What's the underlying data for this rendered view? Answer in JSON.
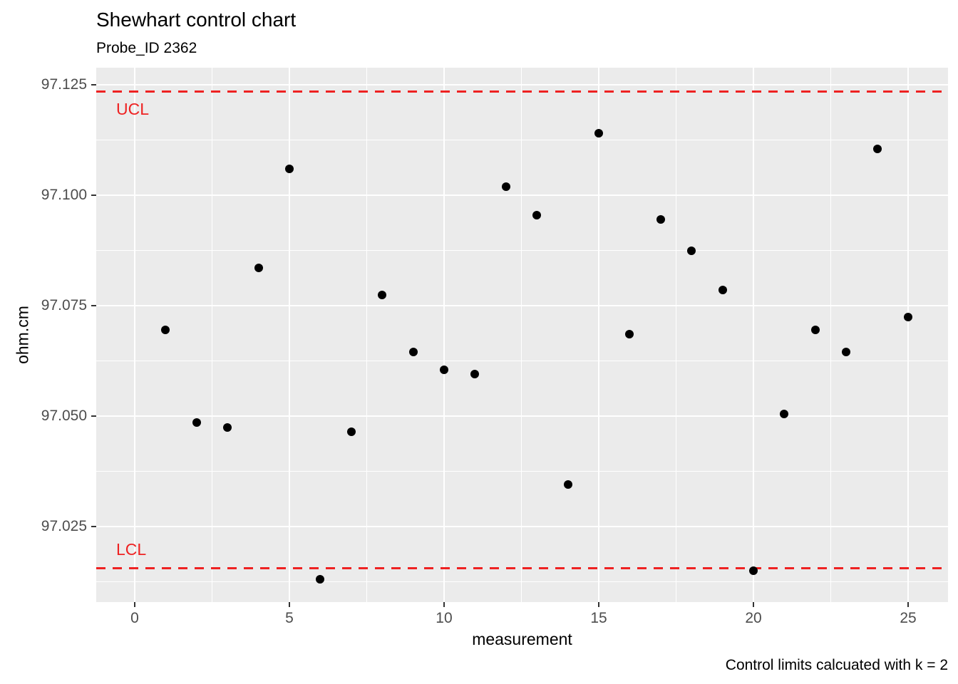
{
  "header": {
    "title": "Shewhart control chart",
    "subtitle": "Probe_ID 2362"
  },
  "footer": {
    "caption": "Control limits calcuated with k = 2"
  },
  "chart_data": {
    "type": "scatter",
    "title": "Shewhart control chart",
    "subtitle": "Probe_ID 2362",
    "xlabel": "measurement",
    "ylabel": "ohm.cm",
    "caption": "Control limits calcuated with k = 2",
    "x": [
      1,
      2,
      3,
      4,
      5,
      6,
      7,
      8,
      9,
      10,
      11,
      12,
      13,
      14,
      15,
      16,
      17,
      18,
      19,
      20,
      21,
      22,
      23,
      24,
      25
    ],
    "y": [
      97.0695,
      97.0485,
      97.0475,
      97.0835,
      97.106,
      97.013,
      97.0465,
      97.0775,
      97.0645,
      97.0605,
      97.0595,
      97.102,
      97.0955,
      97.0345,
      97.114,
      97.0685,
      97.0945,
      97.0875,
      97.0785,
      97.015,
      97.0505,
      97.0695,
      97.0645,
      97.1105,
      97.0725
    ],
    "control_limits": {
      "ucl": {
        "label": "UCL",
        "value": 97.1235
      },
      "lcl": {
        "label": "LCL",
        "value": 97.0155
      },
      "k_note": "k = 2",
      "line_style": "dashed"
    },
    "x_ticks": [
      0,
      5,
      10,
      15,
      20,
      25
    ],
    "x_tick_labels": [
      "0",
      "5",
      "10",
      "15",
      "20",
      "25"
    ],
    "y_ticks": [
      97.025,
      97.05,
      97.075,
      97.1,
      97.125
    ],
    "y_tick_labels": [
      "97.025",
      "97.050",
      "97.075",
      "97.100",
      "97.125"
    ],
    "xlim": [
      -1.244,
      26.29
    ],
    "ylim": [
      97.0079,
      97.1289
    ],
    "grid": true,
    "legend": "none",
    "colors": {
      "point": "#000000",
      "limit_line": "#EE2222",
      "panel_bg": "#EBEBEB",
      "gridline": "#FFFFFF",
      "tick_text": "#4D4D4D",
      "tick_mark": "#333333",
      "text": "#000000"
    }
  }
}
